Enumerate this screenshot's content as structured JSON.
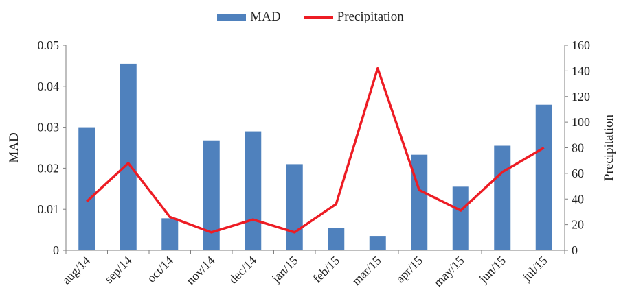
{
  "chart_data": {
    "type": "bar",
    "categories": [
      "aug/14",
      "sep/14",
      "oct/14",
      "nov/14",
      "dec/14",
      "jan/15",
      "feb/15",
      "mar/15",
      "apr/15",
      "may/15",
      "jun/15",
      "jul/15"
    ],
    "series": [
      {
        "name": "MAD",
        "type": "bar",
        "axis": "left",
        "values": [
          0.03,
          0.0455,
          0.0078,
          0.0268,
          0.029,
          0.021,
          0.0055,
          0.0035,
          0.0233,
          0.0155,
          0.0255,
          0.0355
        ]
      },
      {
        "name": "Precipitation",
        "type": "line",
        "axis": "right",
        "values": [
          38,
          68,
          26,
          14,
          24,
          14,
          36,
          142,
          47,
          31,
          61,
          80
        ]
      }
    ],
    "ylabel": "MAD",
    "y2label": "Precipitation",
    "ylim": [
      0,
      0.05
    ],
    "y2lim": [
      0,
      160
    ],
    "yticks": [
      "0",
      "0.01",
      "0.02",
      "0.03",
      "0.04",
      "0.05"
    ],
    "y2ticks": [
      "0",
      "20",
      "40",
      "60",
      "80",
      "100",
      "120",
      "140",
      "160"
    ],
    "grid": false,
    "legend": "top-center",
    "colors": {
      "bar": "#4f81bd",
      "line": "#ed1c24"
    }
  },
  "legend": {
    "mad_label": "MAD",
    "precip_label": "Precipitation"
  }
}
